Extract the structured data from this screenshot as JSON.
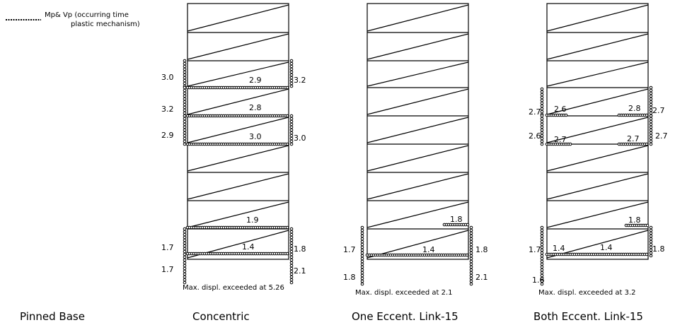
{
  "legend": {
    "label": "Mp& Vp (occurring time",
    "label2": "plastic mechanism)"
  },
  "base_label": "Pinned Base",
  "panels": [
    {
      "title": "Concentric",
      "max_displ": "Max. displ. exceeded at 5.26",
      "labels": [
        "3.0",
        "2.9",
        "3.2",
        "3.2",
        "2.8",
        "2.9",
        "3.0",
        "3.0",
        "1.9",
        "1.7",
        "1.4",
        "1.8",
        "1.7",
        "2.1"
      ]
    },
    {
      "title": "One Eccent. Link-15",
      "max_displ": "Max. displ. exceeded at 2.1",
      "labels": [
        "1.8",
        "1.7",
        "1.4",
        "1.8",
        "1.8",
        "2.1"
      ]
    },
    {
      "title": "Both Eccent. Link-15",
      "max_displ": "Max. displ. exceeded at 3.2",
      "labels": [
        "2.7",
        "2.6",
        "2.8",
        "2.7",
        "2.6",
        "2.7",
        "2.7",
        "2.7",
        "1.8",
        "1.7",
        "1.4",
        "1.4",
        "1.8",
        "1.6"
      ]
    }
  ]
}
